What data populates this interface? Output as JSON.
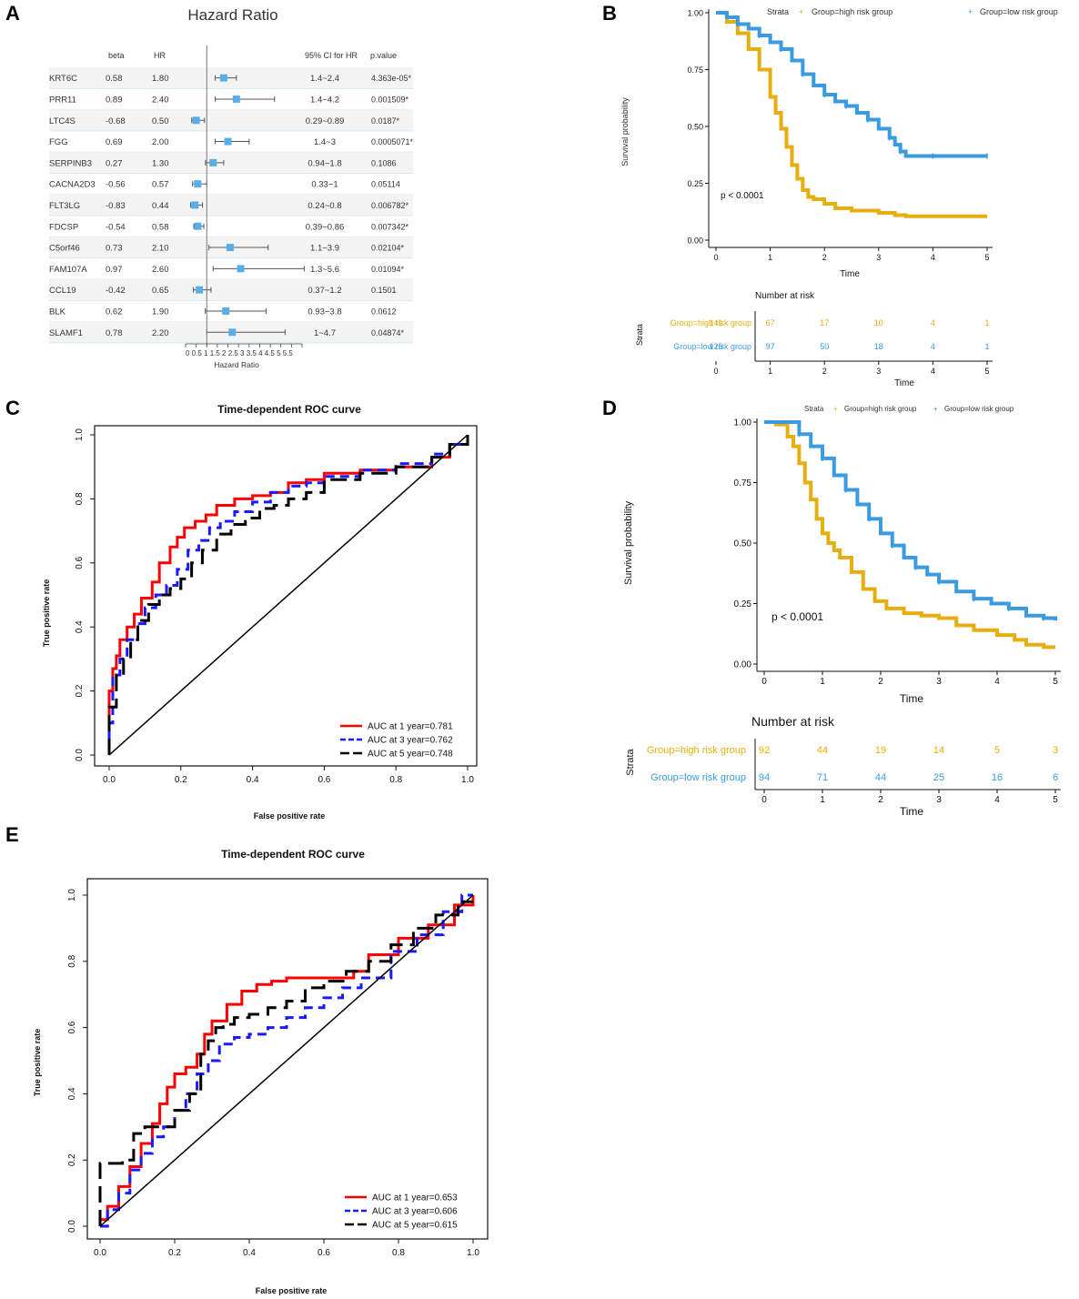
{
  "panels": {
    "a": "A",
    "b": "B",
    "c": "C",
    "d": "D",
    "e": "E"
  },
  "forest": {
    "title": "Hazard Ratio",
    "col_beta": "beta",
    "col_hr": "HR",
    "col_ci": "95% CI for HR",
    "col_p": "p.value",
    "xlabel": "Hazard Ratio",
    "ticks": [
      0,
      0.5,
      1,
      1.5,
      2,
      2.5,
      3,
      3.5,
      4,
      4.5,
      5,
      5.5
    ],
    "tick_labels": "0 0.5 1 1.5 2 2.5 3 3.5 4 4.5 5 5.5",
    "colors": {
      "marker": "#5aaee8",
      "band": "#f4f4f4",
      "ref": "#8ab4d8"
    }
  },
  "km_b": {
    "legend": {
      "strata": "Strata",
      "high": "Group=high risk group",
      "low": "Group=low risk group"
    },
    "ylabel": "Survival probability",
    "xlabel": "Time",
    "pvalue": "p < 0.0001",
    "yticks": [
      "0.00",
      "0.25",
      "0.50",
      "0.75",
      "1.00"
    ],
    "xticks": [
      "0",
      "1",
      "2",
      "3",
      "4",
      "5"
    ],
    "risk_title": "Number at risk",
    "risk_ylabel": "Strata",
    "risk_high_label": "Group=high risk group",
    "risk_low_label": "Group=low risk group",
    "risk_high": [
      "141",
      "67",
      "17",
      "10",
      "4",
      "1"
    ],
    "risk_low": [
      "126",
      "97",
      "50",
      "18",
      "4",
      "1"
    ],
    "risk_xlabel": "Time"
  },
  "km_d": {
    "legend": {
      "strata": "Strata",
      "high": "Group=high risk group",
      "low": "Group=low risk group"
    },
    "ylabel": "Survival probability",
    "xlabel": "Time",
    "pvalue": "p < 0.0001",
    "yticks": [
      "0.00",
      "0.25",
      "0.50",
      "0.75",
      "1.00"
    ],
    "xticks": [
      "0",
      "1",
      "2",
      "3",
      "4",
      "5"
    ],
    "risk_title": "Number at risk",
    "risk_ylabel": "Strata",
    "risk_high_label": "Group=high risk group",
    "risk_low_label": "Group=low risk group",
    "risk_high": [
      "92",
      "44",
      "19",
      "14",
      "5",
      "3"
    ],
    "risk_low": [
      "94",
      "71",
      "44",
      "25",
      "16",
      "6"
    ],
    "risk_xlabel": "Time"
  },
  "roc_c": {
    "title": "Time-dependent ROC curve",
    "xlabel": "False positive rate",
    "ylabel": "True positive rate",
    "ticks": [
      "0.0",
      "0.2",
      "0.4",
      "0.6",
      "0.8",
      "1.0"
    ],
    "legend": [
      "AUC at 1 year=0.781",
      "AUC at 3 year=0.762",
      "AUC at 5 year=0.748"
    ]
  },
  "roc_e": {
    "title": "Time-dependent ROC curve",
    "xlabel": "False positive rate",
    "ylabel": "True positive rate",
    "ticks": [
      "0.0",
      "0.2",
      "0.4",
      "0.6",
      "0.8",
      "1.0"
    ],
    "legend": [
      "AUC at 1 year=0.653",
      "AUC at 3 year=0.606",
      "AUC at 5 year=0.615"
    ]
  },
  "chart_data": [
    {
      "type": "forest",
      "title": "Hazard Ratio",
      "xlabel": "Hazard Ratio",
      "xlim": [
        0,
        5.5
      ],
      "rows": [
        {
          "gene": "KRT6C",
          "beta": "0.58",
          "hr": "1.80",
          "hr_value": 1.8,
          "lo": 1.4,
          "hi": 2.4,
          "ci": "1.4~2.4",
          "p": "4.363e-05*"
        },
        {
          "gene": "PRR11",
          "beta": "0.89",
          "hr": "2.40",
          "hr_value": 2.4,
          "lo": 1.4,
          "hi": 4.2,
          "ci": "1.4~4.2",
          "p": "0.001509*"
        },
        {
          "gene": "LTC4S",
          "beta": "-0.68",
          "hr": "0.50",
          "hr_value": 0.5,
          "lo": 0.29,
          "hi": 0.89,
          "ci": "0.29~0.89",
          "p": "0.0187*"
        },
        {
          "gene": "FGG",
          "beta": "0.69",
          "hr": "2.00",
          "hr_value": 2.0,
          "lo": 1.4,
          "hi": 3.0,
          "ci": "1.4~3",
          "p": "0.0005071*"
        },
        {
          "gene": "SERPINB3",
          "beta": "0.27",
          "hr": "1.30",
          "hr_value": 1.3,
          "lo": 0.94,
          "hi": 1.8,
          "ci": "0.94~1.8",
          "p": "0.1086"
        },
        {
          "gene": "CACNA2D3",
          "beta": "-0.56",
          "hr": "0.57",
          "hr_value": 0.57,
          "lo": 0.33,
          "hi": 1.0,
          "ci": "0.33~1",
          "p": "0.05114"
        },
        {
          "gene": "FLT3LG",
          "beta": "-0.83",
          "hr": "0.44",
          "hr_value": 0.44,
          "lo": 0.24,
          "hi": 0.8,
          "ci": "0.24~0.8",
          "p": "0.006782*"
        },
        {
          "gene": "FDCSP",
          "beta": "-0.54",
          "hr": "0.58",
          "hr_value": 0.58,
          "lo": 0.39,
          "hi": 0.86,
          "ci": "0.39~0.86",
          "p": "0.007342*"
        },
        {
          "gene": "C5orf46",
          "beta": "0.73",
          "hr": "2.10",
          "hr_value": 2.1,
          "lo": 1.1,
          "hi": 3.9,
          "ci": "1.1~3.9",
          "p": "0.02104*"
        },
        {
          "gene": "FAM107A",
          "beta": "0.97",
          "hr": "2.60",
          "hr_value": 2.6,
          "lo": 1.3,
          "hi": 5.6,
          "ci": "1.3~5.6",
          "p": "0.01094*"
        },
        {
          "gene": "CCL19",
          "beta": "-0.42",
          "hr": "0.65",
          "hr_value": 0.65,
          "lo": 0.37,
          "hi": 1.2,
          "ci": "0.37~1.2",
          "p": "0.1501"
        },
        {
          "gene": "BLK",
          "beta": "0.62",
          "hr": "1.90",
          "hr_value": 1.9,
          "lo": 0.93,
          "hi": 3.8,
          "ci": "0.93~3.8",
          "p": "0.0612"
        },
        {
          "gene": "SLAMF1",
          "beta": "0.78",
          "hr": "2.20",
          "hr_value": 2.2,
          "lo": 1.0,
          "hi": 4.7,
          "ci": "1~4.7",
          "p": "0.04874*"
        }
      ]
    },
    {
      "type": "line",
      "id": "km_b",
      "xlabel": "Time",
      "ylabel": "Survival probability",
      "xlim": [
        0,
        5
      ],
      "ylim": [
        0,
        1
      ],
      "series": [
        {
          "name": "Group=high risk group",
          "color": "#e6ae0f",
          "x": [
            0,
            0.2,
            0.4,
            0.6,
            0.8,
            1.0,
            1.1,
            1.2,
            1.3,
            1.4,
            1.5,
            1.6,
            1.7,
            1.8,
            2.0,
            2.2,
            2.5,
            3.0,
            3.3,
            3.5,
            4.0,
            5.0
          ],
          "y": [
            1.0,
            0.96,
            0.91,
            0.84,
            0.75,
            0.63,
            0.56,
            0.49,
            0.41,
            0.33,
            0.27,
            0.22,
            0.19,
            0.18,
            0.16,
            0.14,
            0.13,
            0.12,
            0.11,
            0.105,
            0.105,
            0.105
          ]
        },
        {
          "name": "Group=low risk group",
          "color": "#3a9be0",
          "x": [
            0,
            0.2,
            0.4,
            0.6,
            0.8,
            1.0,
            1.2,
            1.4,
            1.6,
            1.8,
            2.0,
            2.2,
            2.4,
            2.6,
            2.8,
            3.0,
            3.2,
            3.3,
            3.4,
            3.5,
            4.0,
            4.5,
            5.0
          ],
          "y": [
            1.0,
            0.98,
            0.95,
            0.93,
            0.9,
            0.87,
            0.84,
            0.79,
            0.73,
            0.68,
            0.64,
            0.61,
            0.59,
            0.56,
            0.53,
            0.49,
            0.45,
            0.42,
            0.39,
            0.37,
            0.37,
            0.37,
            0.37
          ]
        }
      ],
      "annotation": "p < 0.0001"
    },
    {
      "type": "line",
      "id": "roc_c",
      "title": "Time-dependent ROC curve",
      "xlabel": "False positive rate",
      "ylabel": "True positive rate",
      "xlim": [
        0,
        1
      ],
      "ylim": [
        0,
        1
      ],
      "series": [
        {
          "name": "AUC at 1 year=0.781",
          "color": "#ff0000",
          "dash": "solid",
          "x": [
            0,
            0.0,
            0.01,
            0.02,
            0.03,
            0.05,
            0.07,
            0.09,
            0.12,
            0.14,
            0.17,
            0.19,
            0.21,
            0.24,
            0.27,
            0.3,
            0.35,
            0.4,
            0.45,
            0.5,
            0.55,
            0.6,
            0.7,
            0.8,
            0.9,
            0.95,
            1.0
          ],
          "y": [
            0,
            0.2,
            0.27,
            0.31,
            0.36,
            0.4,
            0.44,
            0.49,
            0.54,
            0.6,
            0.65,
            0.68,
            0.71,
            0.73,
            0.75,
            0.78,
            0.8,
            0.81,
            0.82,
            0.85,
            0.86,
            0.88,
            0.89,
            0.9,
            0.93,
            0.97,
            1.0
          ]
        },
        {
          "name": "AUC at 3 year=0.762",
          "color": "#1a1aff",
          "dash": "dashed",
          "x": [
            0,
            0.0,
            0.01,
            0.03,
            0.05,
            0.08,
            0.1,
            0.13,
            0.16,
            0.19,
            0.22,
            0.25,
            0.28,
            0.31,
            0.35,
            0.4,
            0.45,
            0.5,
            0.55,
            0.6,
            0.7,
            0.8,
            0.9,
            0.95,
            1.0
          ],
          "y": [
            0,
            0.1,
            0.25,
            0.3,
            0.36,
            0.41,
            0.46,
            0.5,
            0.53,
            0.58,
            0.64,
            0.67,
            0.71,
            0.73,
            0.76,
            0.79,
            0.82,
            0.84,
            0.85,
            0.87,
            0.89,
            0.91,
            0.94,
            0.97,
            1.0
          ]
        },
        {
          "name": "AUC at 5 year=0.748",
          "color": "#000000",
          "dash": "longdash",
          "x": [
            0,
            0.0,
            0.02,
            0.04,
            0.06,
            0.08,
            0.11,
            0.14,
            0.17,
            0.2,
            0.23,
            0.26,
            0.3,
            0.34,
            0.38,
            0.42,
            0.46,
            0.5,
            0.55,
            0.6,
            0.7,
            0.8,
            0.9,
            0.95,
            1.0
          ],
          "y": [
            0,
            0.15,
            0.25,
            0.3,
            0.36,
            0.42,
            0.47,
            0.5,
            0.52,
            0.55,
            0.6,
            0.64,
            0.69,
            0.72,
            0.74,
            0.77,
            0.78,
            0.8,
            0.82,
            0.86,
            0.88,
            0.9,
            0.93,
            0.97,
            1.0
          ]
        },
        {
          "name": "reference",
          "color": "#000000",
          "dash": "solid",
          "x": [
            0,
            1
          ],
          "y": [
            0,
            1
          ]
        }
      ]
    },
    {
      "type": "line",
      "id": "km_d",
      "xlabel": "Time",
      "ylabel": "Survival probability",
      "xlim": [
        0,
        5
      ],
      "ylim": [
        0,
        1
      ],
      "series": [
        {
          "name": "Group=high risk group",
          "color": "#e6ae0f",
          "x": [
            0,
            0.2,
            0.4,
            0.5,
            0.6,
            0.7,
            0.8,
            0.9,
            1.0,
            1.1,
            1.2,
            1.3,
            1.5,
            1.7,
            1.9,
            2.1,
            2.4,
            2.7,
            3.0,
            3.3,
            3.6,
            4.0,
            4.3,
            4.5,
            4.8,
            5.0
          ],
          "y": [
            1.0,
            0.99,
            0.94,
            0.9,
            0.83,
            0.75,
            0.68,
            0.6,
            0.54,
            0.5,
            0.47,
            0.44,
            0.38,
            0.31,
            0.26,
            0.23,
            0.21,
            0.2,
            0.19,
            0.16,
            0.14,
            0.12,
            0.1,
            0.08,
            0.07,
            0.07
          ]
        },
        {
          "name": "Group=low risk group",
          "color": "#3a9be0",
          "x": [
            0,
            0.3,
            0.6,
            0.8,
            1.0,
            1.2,
            1.4,
            1.6,
            1.8,
            2.0,
            2.2,
            2.4,
            2.6,
            2.8,
            3.0,
            3.3,
            3.6,
            3.9,
            4.2,
            4.5,
            4.8,
            5.0
          ],
          "y": [
            1.0,
            1.0,
            0.95,
            0.9,
            0.85,
            0.78,
            0.72,
            0.66,
            0.6,
            0.54,
            0.49,
            0.44,
            0.4,
            0.37,
            0.34,
            0.3,
            0.27,
            0.25,
            0.23,
            0.2,
            0.19,
            0.18
          ]
        }
      ],
      "annotation": "p < 0.0001"
    },
    {
      "type": "line",
      "id": "roc_e",
      "title": "Time-dependent ROC curve",
      "xlabel": "False positive rate",
      "ylabel": "True positive rate",
      "xlim": [
        0,
        1
      ],
      "ylim": [
        0,
        1
      ],
      "series": [
        {
          "name": "AUC at 1 year=0.653",
          "color": "#ff0000",
          "dash": "solid",
          "x": [
            0,
            0.02,
            0.05,
            0.08,
            0.11,
            0.14,
            0.16,
            0.18,
            0.2,
            0.23,
            0.26,
            0.28,
            0.3,
            0.34,
            0.38,
            0.42,
            0.46,
            0.5,
            0.55,
            0.6,
            0.65,
            0.68,
            0.72,
            0.8,
            0.88,
            0.95,
            1.0
          ],
          "y": [
            0.02,
            0.06,
            0.12,
            0.18,
            0.25,
            0.31,
            0.37,
            0.42,
            0.46,
            0.48,
            0.52,
            0.58,
            0.62,
            0.67,
            0.71,
            0.73,
            0.74,
            0.75,
            0.75,
            0.75,
            0.75,
            0.77,
            0.82,
            0.87,
            0.91,
            0.97,
            1.0
          ]
        },
        {
          "name": "AUC at 3 year=0.606",
          "color": "#1a1aff",
          "dash": "dashed",
          "x": [
            0,
            0.02,
            0.05,
            0.08,
            0.11,
            0.14,
            0.17,
            0.2,
            0.23,
            0.26,
            0.29,
            0.32,
            0.36,
            0.4,
            0.45,
            0.5,
            0.55,
            0.6,
            0.65,
            0.7,
            0.78,
            0.85,
            0.92,
            0.97,
            1.0
          ],
          "y": [
            0,
            0.05,
            0.1,
            0.17,
            0.22,
            0.27,
            0.3,
            0.35,
            0.4,
            0.46,
            0.5,
            0.55,
            0.57,
            0.58,
            0.6,
            0.63,
            0.66,
            0.69,
            0.72,
            0.75,
            0.83,
            0.88,
            0.95,
            1.0,
            1.0
          ]
        },
        {
          "name": "AUC at 5 year=0.615",
          "color": "#000000",
          "dash": "longdash",
          "x": [
            0,
            0.0,
            0.04,
            0.06,
            0.09,
            0.12,
            0.16,
            0.2,
            0.24,
            0.27,
            0.29,
            0.31,
            0.33,
            0.36,
            0.4,
            0.45,
            0.5,
            0.55,
            0.6,
            0.66,
            0.72,
            0.78,
            0.84,
            0.9,
            0.96,
            1.0
          ],
          "y": [
            0,
            0.19,
            0.19,
            0.2,
            0.28,
            0.3,
            0.3,
            0.35,
            0.4,
            0.52,
            0.56,
            0.6,
            0.61,
            0.63,
            0.64,
            0.66,
            0.68,
            0.72,
            0.74,
            0.77,
            0.8,
            0.85,
            0.9,
            0.94,
            0.98,
            0.98
          ]
        },
        {
          "name": "reference",
          "color": "#000000",
          "dash": "solid",
          "x": [
            0,
            1
          ],
          "y": [
            0,
            1
          ]
        }
      ]
    }
  ]
}
